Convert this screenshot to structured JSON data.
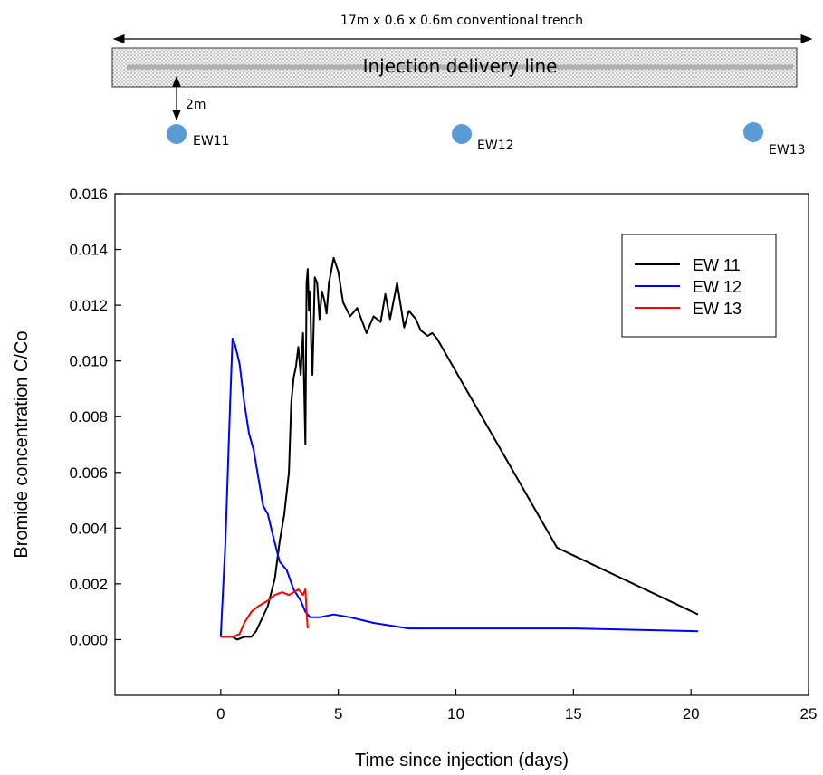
{
  "diagram": {
    "trench_label": "17m x 0.6 x 0.6m conventional trench",
    "delivery_line_label": "Injection delivery line",
    "offset_label": "2m",
    "wells": [
      {
        "name": "EW11",
        "color": "#5b9bd5"
      },
      {
        "name": "EW12",
        "color": "#5b9bd5"
      },
      {
        "name": "EW13",
        "color": "#5b9bd5"
      }
    ]
  },
  "chart_data": {
    "type": "line",
    "title": "",
    "xlabel": "Time since injection (days)",
    "ylabel": "Bromide concentration  C/Co",
    "xlim": [
      -4.5,
      25
    ],
    "ylim": [
      -0.002,
      0.016
    ],
    "xticks": [
      0,
      5,
      10,
      15,
      20,
      25
    ],
    "yticks": [
      0.0,
      0.002,
      0.004,
      0.006,
      0.008,
      0.01,
      0.012,
      0.014,
      0.016
    ],
    "ytick_labels": [
      "0.000",
      "0.002",
      "0.004",
      "0.006",
      "0.008",
      "0.010",
      "0.012",
      "0.014",
      "0.016"
    ],
    "legend_position": "top-right",
    "grid": false,
    "series": [
      {
        "name": "EW 11",
        "color": "#000000",
        "x": [
          0.0,
          0.5,
          0.7,
          1.0,
          1.3,
          1.5,
          2.0,
          2.3,
          2.5,
          2.7,
          2.9,
          3.0,
          3.1,
          3.2,
          3.3,
          3.4,
          3.5,
          3.6,
          3.65,
          3.7,
          3.75,
          3.8,
          3.85,
          3.9,
          4.0,
          4.1,
          4.2,
          4.3,
          4.4,
          4.5,
          4.6,
          4.8,
          5.0,
          5.2,
          5.5,
          5.8,
          6.2,
          6.5,
          6.8,
          7.0,
          7.2,
          7.5,
          7.8,
          8.0,
          8.3,
          8.5,
          8.8,
          9.0,
          9.2,
          14.3,
          20.3
        ],
        "y": [
          0.0001,
          0.0001,
          0.0,
          0.0001,
          0.0001,
          0.0003,
          0.0012,
          0.0022,
          0.0035,
          0.0045,
          0.006,
          0.0085,
          0.0094,
          0.0098,
          0.0105,
          0.0095,
          0.011,
          0.007,
          0.0128,
          0.0133,
          0.0118,
          0.0125,
          0.0105,
          0.0095,
          0.013,
          0.0128,
          0.0115,
          0.0125,
          0.0122,
          0.0117,
          0.0128,
          0.0137,
          0.0132,
          0.0121,
          0.0116,
          0.0119,
          0.011,
          0.0116,
          0.0114,
          0.0124,
          0.0115,
          0.0128,
          0.0112,
          0.0118,
          0.0115,
          0.0111,
          0.0109,
          0.011,
          0.0108,
          0.0033,
          0.0009
        ]
      },
      {
        "name": "EW 12",
        "color": "#0000ff",
        "x": [
          0.0,
          0.2,
          0.4,
          0.5,
          0.6,
          0.8,
          1.0,
          1.2,
          1.4,
          1.6,
          1.8,
          2.0,
          2.2,
          2.5,
          2.8,
          3.1,
          3.4,
          3.6,
          3.8,
          4.2,
          4.8,
          5.5,
          6.5,
          8.0,
          9.0,
          12.0,
          15.0,
          20.3
        ],
        "y": [
          0.0001,
          0.0035,
          0.0085,
          0.0108,
          0.0106,
          0.0099,
          0.0085,
          0.0074,
          0.0068,
          0.0058,
          0.0048,
          0.0045,
          0.0038,
          0.0028,
          0.0025,
          0.0018,
          0.0014,
          0.001,
          0.0008,
          0.0008,
          0.0009,
          0.0008,
          0.0006,
          0.0004,
          0.0004,
          0.0004,
          0.0004,
          0.0003
        ]
      },
      {
        "name": "EW 13",
        "color": "#ff0000",
        "x": [
          0.0,
          0.5,
          0.8,
          1.0,
          1.3,
          1.6,
          2.0,
          2.3,
          2.6,
          2.9,
          3.1,
          3.3,
          3.5,
          3.6,
          3.65,
          3.7
        ],
        "y": [
          0.0001,
          0.0001,
          0.0002,
          0.0006,
          0.001,
          0.0012,
          0.0014,
          0.0016,
          0.0017,
          0.0016,
          0.0017,
          0.0018,
          0.0016,
          0.0018,
          0.001,
          0.0004
        ]
      }
    ]
  }
}
